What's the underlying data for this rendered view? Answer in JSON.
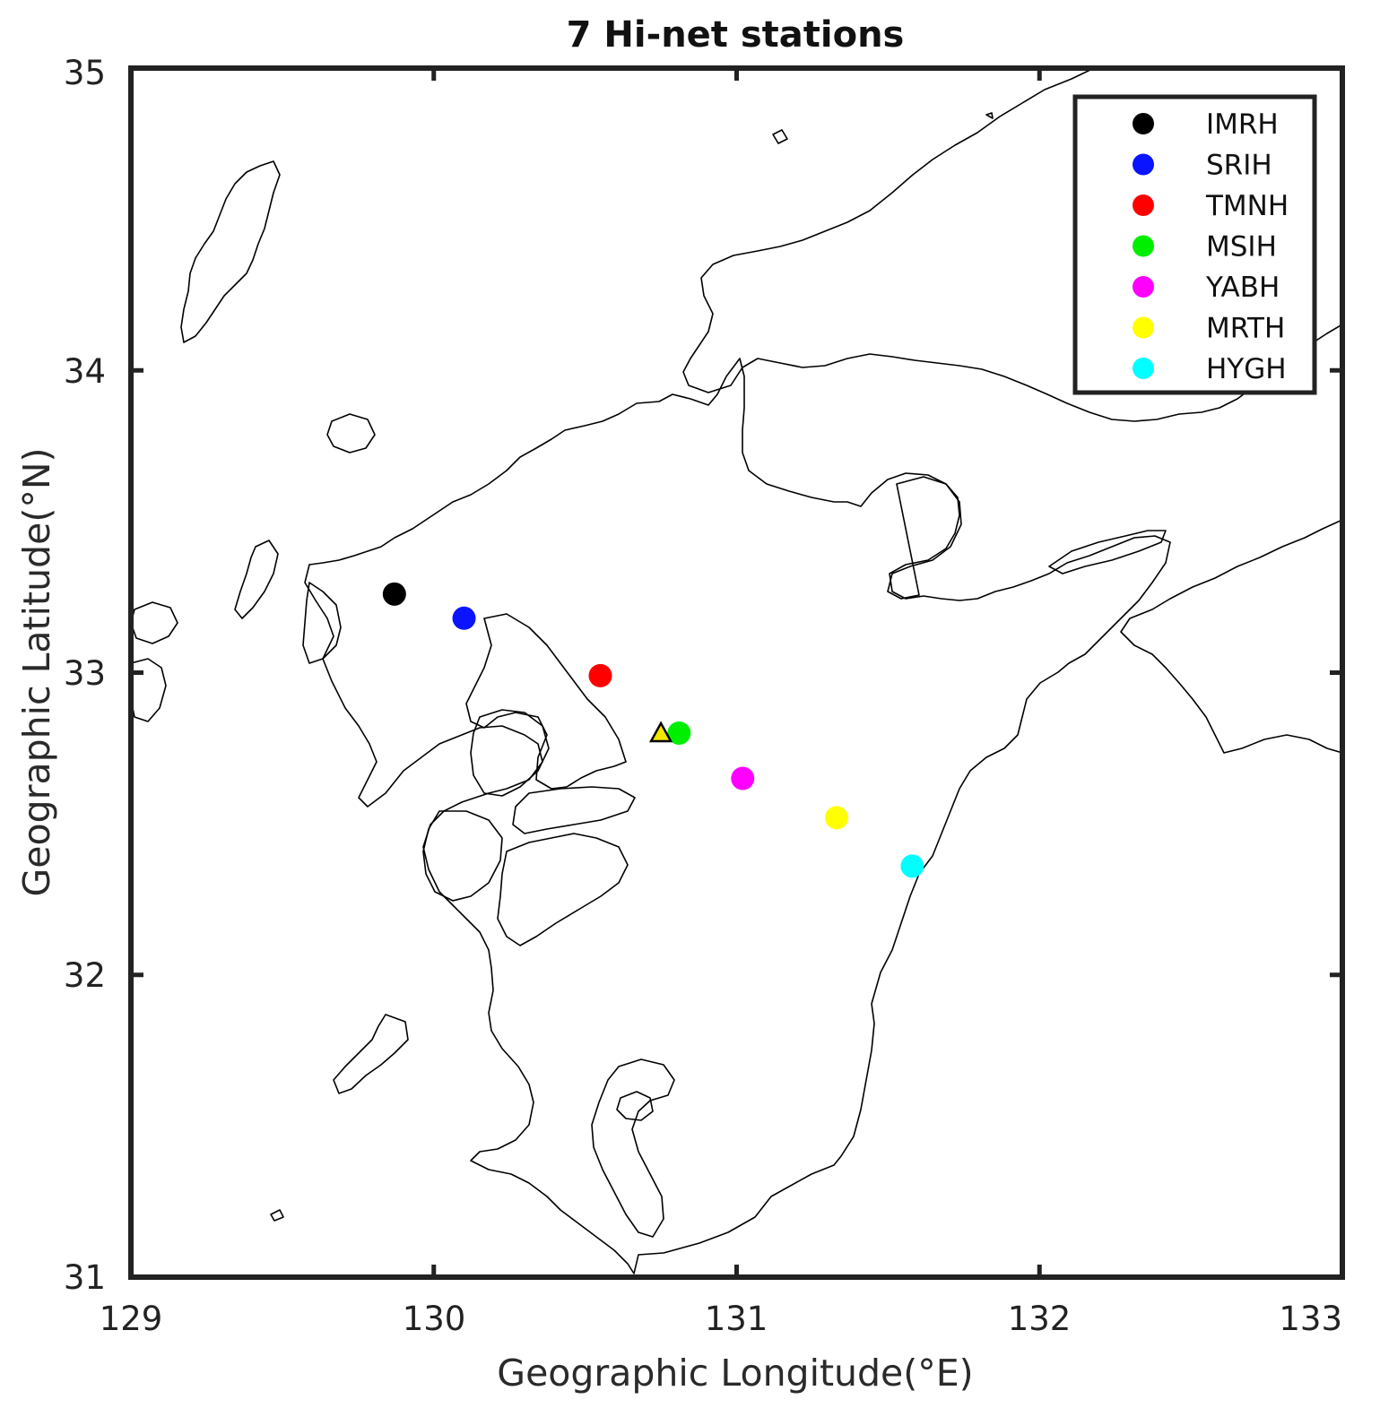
{
  "chart_data": {
    "type": "scatter",
    "title": "7 Hi-net stations",
    "xlabel": "Geographic Longitude(°E)",
    "ylabel": "Geographic Latitude(°N)",
    "xlim": [
      129,
      133
    ],
    "ylim": [
      31,
      35
    ],
    "xticks": [
      "129",
      "130",
      "131",
      "132",
      "133"
    ],
    "yticks": [
      "31",
      "32",
      "33",
      "34",
      "35"
    ],
    "grid": false,
    "legend_position": "top-right",
    "series": [
      {
        "name": "IMRH",
        "color": "#000000",
        "lon": 129.87,
        "lat": 33.26
      },
      {
        "name": "SRIH",
        "color": "#0a14ff",
        "lon": 130.1,
        "lat": 33.18
      },
      {
        "name": "TMNH",
        "color": "#ff0000",
        "lon": 130.55,
        "lat": 32.99
      },
      {
        "name": "MSIH",
        "color": "#00ee00",
        "lon": 130.81,
        "lat": 32.8
      },
      {
        "name": "YABH",
        "color": "#ff00ff",
        "lon": 131.02,
        "lat": 32.65
      },
      {
        "name": "MRTH",
        "color": "#ffff00",
        "lon": 131.33,
        "lat": 32.52
      },
      {
        "name": "HYGH",
        "color": "#00ffff",
        "lon": 131.58,
        "lat": 32.36
      }
    ],
    "source_marker": {
      "shape": "triangle",
      "color": "#f2e600",
      "lon": 130.75,
      "lat": 32.8
    }
  }
}
